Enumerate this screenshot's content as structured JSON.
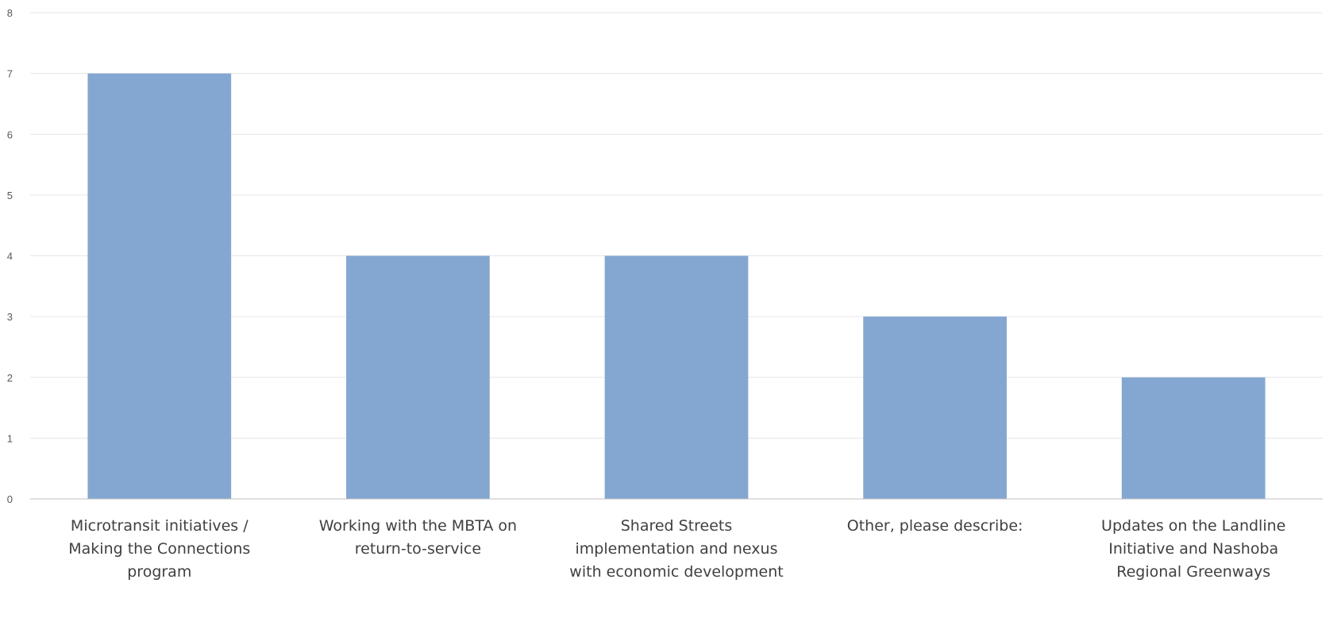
{
  "chart_data": {
    "type": "bar",
    "title": "",
    "xlabel": "",
    "ylabel": "",
    "categories": [
      [
        "Microtransit initiatives /",
        "Making the Connections",
        "program"
      ],
      [
        "Working with the MBTA on",
        "return-to-service"
      ],
      [
        "Shared Streets",
        "implementation and nexus",
        "with economic development"
      ],
      [
        "Other, please describe:"
      ],
      [
        "Updates on the Landline",
        "Initiative and Nashoba",
        "Regional Greenways"
      ]
    ],
    "values": [
      7,
      4,
      4,
      3,
      2
    ],
    "ylim": [
      0,
      8
    ],
    "yticks": [
      "0",
      "1",
      "2",
      "3",
      "4",
      "5",
      "6",
      "7",
      "8"
    ],
    "grid": true,
    "legend": "none",
    "colors": {
      "bar": "#84a7d1",
      "grid": "#e6e6e6",
      "axis": "#bfbfbf"
    }
  }
}
